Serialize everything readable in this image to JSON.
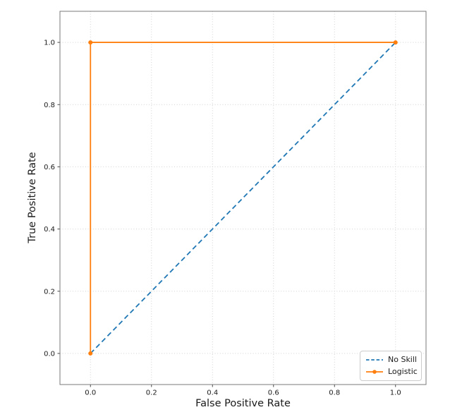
{
  "chart_data": {
    "type": "line",
    "xlabel": "False Positive Rate",
    "ylabel": "True Positive Rate",
    "xlim": [
      -0.1,
      1.1
    ],
    "ylim": [
      -0.1,
      1.1
    ],
    "xticks": {
      "values": [
        0.0,
        0.2,
        0.4,
        0.6,
        0.8,
        1.0
      ],
      "labels": [
        "0.0",
        "0.2",
        "0.4",
        "0.6",
        "0.8",
        "1.0"
      ]
    },
    "yticks": {
      "values": [
        0.0,
        0.2,
        0.4,
        0.6,
        0.8,
        1.0
      ],
      "labels": [
        "0.0",
        "0.2",
        "0.4",
        "0.6",
        "0.8",
        "1.0"
      ]
    },
    "grid": {
      "on": true,
      "linestyle": "dotted",
      "color": "#d2d2d2"
    },
    "legend": {
      "position": "lower right"
    },
    "series": [
      {
        "name": "No Skill",
        "color": "#1f77b4",
        "line_style": "dashed",
        "marker": "none",
        "points": [
          [
            0,
            0
          ],
          [
            1,
            1
          ]
        ]
      },
      {
        "name": "Logistic",
        "color": "#ff7f0e",
        "line_style": "solid",
        "marker": "dot",
        "points": [
          [
            0,
            0
          ],
          [
            0,
            1
          ],
          [
            1,
            1
          ]
        ]
      }
    ]
  },
  "figure": {
    "background": "#ffffff",
    "spine_color": "#7a7a7a",
    "tick_color": "#444444",
    "tick_label_color": "#1a1a1a"
  }
}
